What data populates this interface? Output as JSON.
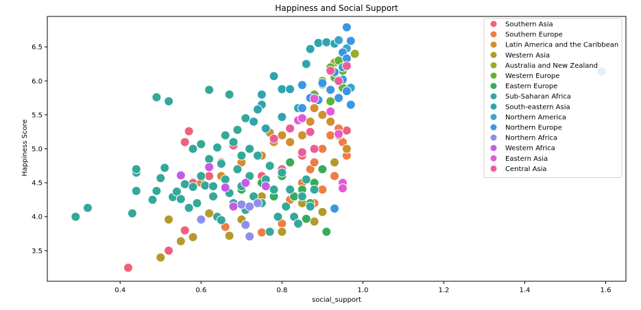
{
  "chart_data": {
    "type": "scatter",
    "title": "Happiness and Social Support",
    "xlabel": "social_support",
    "ylabel": "Happiness Score",
    "xlim": [
      0.22,
      1.65
    ],
    "ylim": [
      3.05,
      6.95
    ],
    "xticks": [
      "0.4",
      "0.6",
      "0.8",
      "1.0",
      "1.2",
      "1.4",
      "1.6"
    ],
    "yticks": [
      "3.5",
      "4.0",
      "4.5",
      "5.0",
      "5.5",
      "6.0",
      "6.5"
    ],
    "grid": false,
    "legend_position": "top-right",
    "series": [
      {
        "name": "Southern Asia",
        "color": "#f0607a",
        "points": [
          [
            0.42,
            3.25
          ],
          [
            0.52,
            3.5
          ],
          [
            0.56,
            3.8
          ],
          [
            0.57,
            5.26
          ],
          [
            0.56,
            5.1
          ],
          [
            0.58,
            4.5
          ],
          [
            0.62,
            4.6
          ],
          [
            0.65,
            4.8
          ],
          [
            0.68,
            5.05
          ],
          [
            0.7,
            4.9
          ],
          [
            0.75,
            4.6
          ],
          [
            0.8,
            4.7
          ],
          [
            0.85,
            4.9
          ],
          [
            0.9,
            5.0
          ],
          [
            0.93,
            4.8
          ],
          [
            0.96,
            5.27
          ]
        ]
      },
      {
        "name": "Southern Europe",
        "color": "#ef7d40",
        "points": [
          [
            0.66,
            3.85
          ],
          [
            0.75,
            3.77
          ],
          [
            0.8,
            3.9
          ],
          [
            0.82,
            4.25
          ],
          [
            0.85,
            4.5
          ],
          [
            0.87,
            4.7
          ],
          [
            0.88,
            4.8
          ],
          [
            0.9,
            5.0
          ],
          [
            0.92,
            5.2
          ],
          [
            0.94,
            5.3
          ],
          [
            0.95,
            5.1
          ],
          [
            0.96,
            4.9
          ],
          [
            0.93,
            4.6
          ],
          [
            0.9,
            4.4
          ],
          [
            0.88,
            4.2
          ]
        ]
      },
      {
        "name": "Latin America and the Caribbean",
        "color": "#cf9030",
        "points": [
          [
            0.6,
            4.5
          ],
          [
            0.65,
            4.6
          ],
          [
            0.7,
            4.8
          ],
          [
            0.72,
            5.0
          ],
          [
            0.75,
            4.9
          ],
          [
            0.78,
            5.1
          ],
          [
            0.8,
            5.2
          ],
          [
            0.82,
            5.1
          ],
          [
            0.85,
            5.2
          ],
          [
            0.87,
            5.4
          ],
          [
            0.88,
            5.6
          ],
          [
            0.9,
            5.5
          ],
          [
            0.92,
            5.4
          ],
          [
            0.94,
            5.2
          ],
          [
            0.96,
            5.0
          ],
          [
            0.77,
            5.24
          ]
        ]
      },
      {
        "name": "Western Asia",
        "color": "#b49a2c",
        "points": [
          [
            0.5,
            3.4
          ],
          [
            0.52,
            3.96
          ],
          [
            0.55,
            3.64
          ],
          [
            0.58,
            3.7
          ],
          [
            0.62,
            4.05
          ],
          [
            0.67,
            3.72
          ],
          [
            0.7,
            3.96
          ],
          [
            0.75,
            4.3
          ],
          [
            0.8,
            3.78
          ],
          [
            0.85,
            4.2
          ],
          [
            0.9,
            4.07
          ],
          [
            0.93,
            4.8
          ],
          [
            0.88,
            3.93
          ]
        ]
      },
      {
        "name": "Australia and New Zealand",
        "color": "#9aab2c",
        "points": [
          [
            0.98,
            6.4
          ],
          [
            0.95,
            6.3
          ],
          [
            0.93,
            6.27
          ]
        ]
      },
      {
        "name": "Western Europe",
        "color": "#62b23a",
        "points": [
          [
            0.9,
            6.0
          ],
          [
            0.92,
            6.2
          ],
          [
            0.94,
            6.3
          ],
          [
            0.95,
            6.15
          ],
          [
            0.93,
            6.05
          ],
          [
            0.9,
            5.95
          ],
          [
            0.88,
            5.8
          ],
          [
            0.92,
            5.7
          ],
          [
            0.95,
            5.9
          ]
        ]
      },
      {
        "name": "Eastern Europe",
        "color": "#36ac5a",
        "points": [
          [
            0.7,
            4.4
          ],
          [
            0.72,
            4.6
          ],
          [
            0.75,
            4.5
          ],
          [
            0.78,
            4.3
          ],
          [
            0.8,
            4.6
          ],
          [
            0.82,
            4.8
          ],
          [
            0.85,
            4.4
          ],
          [
            0.87,
            4.2
          ],
          [
            0.88,
            4.5
          ],
          [
            0.9,
            4.7
          ],
          [
            0.91,
            3.78
          ],
          [
            0.86,
            3.97
          ],
          [
            0.83,
            4.3
          ]
        ]
      },
      {
        "name": "Sub-Saharan Africa",
        "color": "#34a89a",
        "points": [
          [
            0.29,
            4.0
          ],
          [
            0.32,
            4.13
          ],
          [
            0.43,
            4.05
          ],
          [
            0.44,
            4.38
          ],
          [
            0.44,
            4.65
          ],
          [
            0.44,
            4.7
          ],
          [
            0.48,
            4.25
          ],
          [
            0.49,
            4.38
          ],
          [
            0.49,
            5.76
          ],
          [
            0.5,
            4.57
          ],
          [
            0.51,
            4.72
          ],
          [
            0.52,
            5.7
          ],
          [
            0.53,
            4.29
          ],
          [
            0.54,
            4.37
          ],
          [
            0.55,
            4.26
          ],
          [
            0.56,
            4.48
          ],
          [
            0.57,
            4.13
          ],
          [
            0.58,
            4.44
          ],
          [
            0.59,
            4.2
          ],
          [
            0.6,
            4.6
          ],
          [
            0.61,
            4.46
          ],
          [
            0.62,
            4.85
          ],
          [
            0.62,
            5.87
          ],
          [
            0.63,
            4.3
          ],
          [
            0.64,
            4.0
          ],
          [
            0.65,
            3.95
          ],
          [
            0.66,
            4.55
          ],
          [
            0.67,
            4.35
          ],
          [
            0.67,
            5.8
          ],
          [
            0.68,
            4.2
          ],
          [
            0.69,
            4.7
          ],
          [
            0.7,
            4.45
          ],
          [
            0.71,
            4.1
          ],
          [
            0.72,
            4.6
          ],
          [
            0.73,
            4.3
          ],
          [
            0.74,
            4.9
          ],
          [
            0.75,
            4.2
          ],
          [
            0.76,
            4.55
          ],
          [
            0.77,
            3.78
          ],
          [
            0.78,
            4.4
          ],
          [
            0.79,
            4.0
          ],
          [
            0.8,
            4.65
          ],
          [
            0.81,
            4.15
          ],
          [
            0.82,
            4.4
          ],
          [
            0.83,
            4.0
          ],
          [
            0.84,
            3.9
          ],
          [
            0.85,
            4.3
          ],
          [
            0.86,
            4.55
          ],
          [
            0.87,
            4.15
          ],
          [
            0.88,
            4.4
          ],
          [
            0.6,
            5.07
          ],
          [
            0.58,
            5.0
          ],
          [
            0.64,
            5.02
          ],
          [
            0.65,
            4.78
          ],
          [
            0.68,
            5.1
          ],
          [
            0.69,
            5.28
          ],
          [
            0.71,
            5.45
          ],
          [
            0.72,
            5.0
          ],
          [
            0.66,
            5.2
          ],
          [
            0.63,
            4.45
          ],
          [
            0.7,
            4.9
          ],
          [
            0.77,
            4.75
          ]
        ]
      },
      {
        "name": "South-eastern Asia",
        "color": "#2ea5ae",
        "points": [
          [
            0.75,
            5.8
          ],
          [
            0.78,
            6.07
          ],
          [
            0.8,
            5.88
          ],
          [
            0.82,
            5.88
          ],
          [
            0.84,
            5.6
          ],
          [
            0.86,
            6.25
          ],
          [
            0.87,
            6.47
          ],
          [
            0.89,
            6.56
          ],
          [
            0.91,
            6.57
          ],
          [
            0.93,
            6.55
          ],
          [
            0.75,
            5.65
          ],
          [
            0.74,
            5.58
          ],
          [
            0.73,
            5.4
          ],
          [
            0.76,
            5.3
          ],
          [
            0.8,
            5.47
          ]
        ]
      },
      {
        "name": "Northern America",
        "color": "#3aa6c7",
        "points": [
          [
            0.94,
            6.6
          ],
          [
            0.96,
            6.48
          ],
          [
            0.95,
            6.2
          ],
          [
            0.97,
            5.9
          ]
        ]
      },
      {
        "name": "Northern Europe",
        "color": "#3a97e3",
        "points": [
          [
            0.96,
            6.79
          ],
          [
            0.97,
            6.59
          ],
          [
            0.95,
            6.42
          ],
          [
            0.96,
            6.33
          ],
          [
            0.93,
            6.13
          ],
          [
            0.95,
            6.02
          ],
          [
            0.96,
            5.85
          ],
          [
            0.97,
            5.65
          ],
          [
            0.94,
            5.75
          ],
          [
            0.92,
            5.87
          ],
          [
            0.9,
            5.97
          ],
          [
            0.89,
            5.72
          ],
          [
            0.87,
            5.75
          ],
          [
            0.85,
            5.6
          ],
          [
            0.85,
            5.94
          ],
          [
            0.93,
            4.12
          ],
          [
            1.59,
            6.14
          ]
        ]
      },
      {
        "name": "Northern Africa",
        "color": "#8f8fe8",
        "points": [
          [
            0.6,
            3.96
          ],
          [
            0.7,
            4.18
          ],
          [
            0.71,
            3.88
          ],
          [
            0.72,
            3.71
          ],
          [
            0.72,
            4.15
          ],
          [
            0.74,
            4.2
          ]
        ]
      },
      {
        "name": "Western Africa",
        "color": "#c45ce6",
        "points": [
          [
            0.55,
            4.61
          ],
          [
            0.62,
            4.73
          ],
          [
            0.66,
            4.43
          ],
          [
            0.68,
            4.15
          ],
          [
            0.71,
            4.5
          ],
          [
            0.76,
            4.45
          ]
        ]
      },
      {
        "name": "Eastern Asia",
        "color": "#e65ad4",
        "points": [
          [
            0.84,
            5.42
          ],
          [
            0.85,
            5.45
          ],
          [
            0.88,
            5.74
          ],
          [
            0.92,
            5.55
          ],
          [
            0.94,
            5.22
          ],
          [
            0.95,
            4.5
          ],
          [
            0.95,
            4.42
          ]
        ]
      },
      {
        "name": "Central Asia",
        "color": "#ec5c9a",
        "points": [
          [
            0.78,
            5.15
          ],
          [
            0.82,
            5.3
          ],
          [
            0.85,
            4.95
          ],
          [
            0.88,
            5.0
          ],
          [
            0.92,
            6.15
          ],
          [
            0.94,
            6.0
          ],
          [
            0.96,
            6.22
          ],
          [
            0.87,
            5.25
          ]
        ]
      }
    ]
  }
}
